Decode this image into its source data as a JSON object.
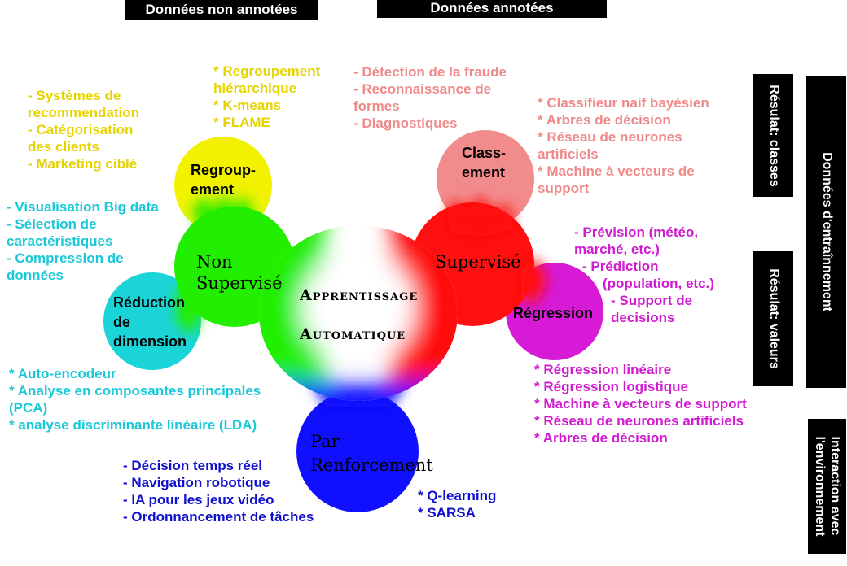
{
  "headers": {
    "unlabeled": "Données non annotées",
    "labeled": "Données annotées"
  },
  "right_labels": {
    "classes": "Résulat: classes",
    "values": "Résulat: valeurs",
    "training": "Données d'entraînnement",
    "env_line1": "Interaction avec",
    "env_line2": "l'environnement"
  },
  "center": {
    "line1": "Apprentissage",
    "line2": "Automatique"
  },
  "branches": {
    "unsupervised_line1": "Non",
    "unsupervised_line2": "Supervisé",
    "supervised": "Supervisé",
    "reinforcement_line1": "Par",
    "reinforcement_line2": "Renforcement"
  },
  "nodes": {
    "clustering_line1": "Regroup-",
    "clustering_line2": "ement",
    "dimred_line1": "Réduction",
    "dimred_line2": "de",
    "dimred_line3": "dimension",
    "classification_line1": "Class-",
    "classification_line2": "ement",
    "regression": "Régression"
  },
  "lists": {
    "clustering_apps": [
      "- Systèmes de",
      "recommendation",
      "- Catégorisation",
      "des clients",
      "- Marketing ciblé"
    ],
    "clustering_algos": [
      "* Regroupement",
      "hiérarchique",
      "* K-means",
      "* FLAME"
    ],
    "dimred_apps": [
      "- Visualisation Big data",
      "- Sélection de",
      "caractéristiques",
      "- Compression de",
      "données"
    ],
    "dimred_algos": [
      "* Auto-encodeur",
      "* Analyse en composantes principales",
      "(PCA)",
      "* analyse discriminante linéaire (LDA)"
    ],
    "classification_apps": [
      "- Détection de la fraude",
      "- Reconnaissance de",
      "formes",
      "- Diagnostiques"
    ],
    "classification_algos": [
      "* Classifieur naif bayésien",
      "* Arbres de décision",
      "* Réseau de neurones",
      "artificiels",
      "* Machine à vecteurs de",
      "support"
    ],
    "regression_apps": [
      "- Prévision (météo,",
      "marché, etc.)",
      "- Prédiction",
      "(population, etc.)",
      "- Support de",
      "decisions"
    ],
    "regression_algos": [
      "* Régression linéaire",
      "* Régression logistique",
      "* Machine à vecteurs de support",
      "* Réseau de neurones artificiels",
      "* Arbres de décision"
    ],
    "rl_apps": [
      "- Décision temps réel",
      "- Navigation robotique",
      "- IA pour les jeux vidéo",
      "- Ordonnancement de tâches"
    ],
    "rl_algos": [
      "* Q-learning",
      "* SARSA"
    ]
  },
  "colors": {
    "clustering": "#f2f200",
    "dimred": "#1ad4d8",
    "unsupervised": "#22ee00",
    "supervised": "#ff1010",
    "classification": "#f28c8c",
    "regression": "#d61ad6",
    "reinforcement": "#1010ff",
    "text_yellow": "#e6d400",
    "text_cyan": "#1ac8d8",
    "text_pink": "#f08a8a",
    "text_magenta": "#d21ad2",
    "text_blue": "#1010cc"
  }
}
